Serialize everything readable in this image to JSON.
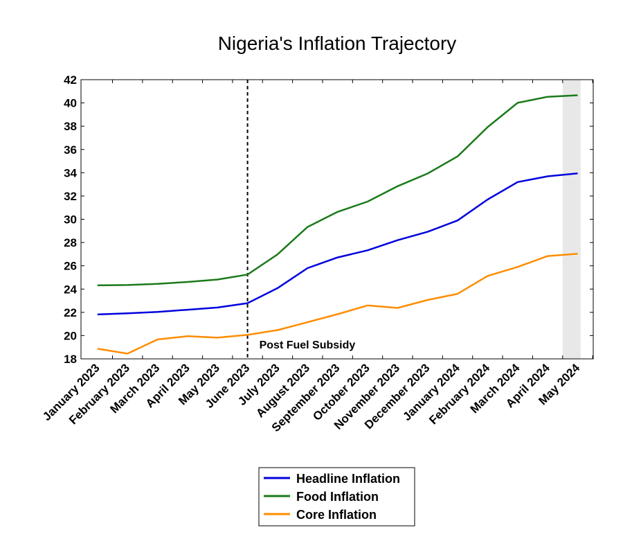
{
  "chart_data": {
    "type": "line",
    "title": "Nigeria's Inflation Trajectory",
    "xlabel": "",
    "ylabel": "",
    "categories": [
      "January 2023",
      "February 2023",
      "March 2023",
      "April 2023",
      "May 2023",
      "June 2023",
      "July 2023",
      "August 2023",
      "September 2023",
      "October 2023",
      "November 2023",
      "December 2023",
      "January 2024",
      "February 2024",
      "March 2024",
      "April 2024",
      "May 2024"
    ],
    "ylim": [
      18,
      42
    ],
    "yticks": [
      "18",
      "20",
      "22",
      "24",
      "26",
      "28",
      "30",
      "32",
      "34",
      "36",
      "38",
      "40",
      "42"
    ],
    "grid": false,
    "legend": "bottom",
    "series": [
      {
        "name": "Headline Inflation",
        "color": "#0000dd",
        "values": [
          21.82,
          21.91,
          22.04,
          22.22,
          22.41,
          22.79,
          24.08,
          25.8,
          26.72,
          27.33,
          28.2,
          28.92,
          29.9,
          31.7,
          33.2,
          33.69,
          33.95
        ]
      },
      {
        "name": "Food Inflation",
        "color": "#1a7a1a",
        "values": [
          24.32,
          24.35,
          24.45,
          24.61,
          24.82,
          25.25,
          26.98,
          29.34,
          30.64,
          31.52,
          32.84,
          33.93,
          35.41,
          37.92,
          40.01,
          40.53,
          40.66
        ]
      },
      {
        "name": "Core Inflation",
        "color": "#ff8c00",
        "values": [
          18.87,
          18.45,
          19.67,
          19.95,
          19.82,
          20.06,
          20.47,
          21.15,
          21.84,
          22.59,
          22.38,
          23.06,
          23.59,
          25.13,
          25.9,
          26.84,
          27.04
        ]
      }
    ],
    "annotations": {
      "vline_category": "June 2023",
      "vline_label": "Post Fuel Subsidy",
      "shaded_from": "April 2024",
      "shaded_to": "May 2024",
      "shade_color": "#e8e8e8"
    }
  }
}
